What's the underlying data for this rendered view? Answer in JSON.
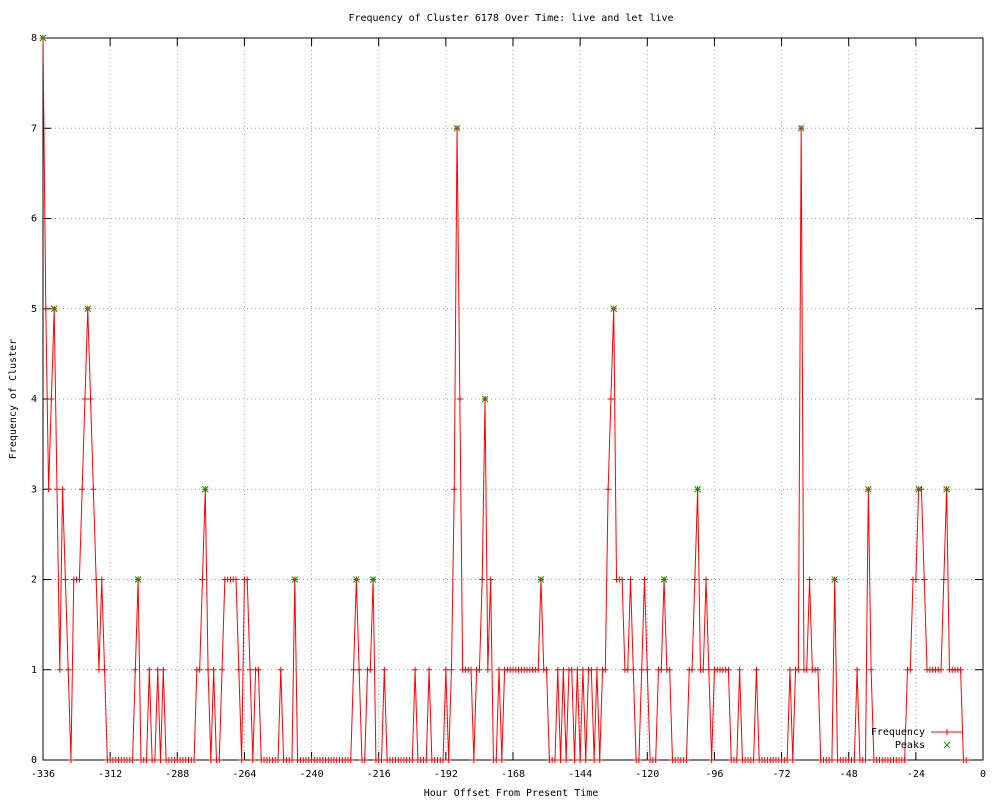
{
  "chart_data": {
    "type": "line",
    "title": "Frequency of Cluster 6178 Over Time: live and let live",
    "x_label": "Hour Offset From Present Time",
    "y_label": "Frequency of Cluster",
    "xlim": [
      -336,
      0
    ],
    "xticks": [
      -336,
      -312,
      -288,
      -264,
      -240,
      -216,
      -192,
      -168,
      -144,
      -120,
      -96,
      -72,
      -48,
      -24,
      0
    ],
    "ylim": [
      0,
      8
    ],
    "yticks": [
      0,
      1,
      2,
      3,
      4,
      5,
      6,
      7,
      8
    ],
    "grid": true,
    "legend_position": "bottom-right",
    "series": [
      {
        "name": "Frequency",
        "color": "#ff0000",
        "marker": "plus",
        "x": [
          -336,
          -335,
          -334,
          -333,
          -332,
          -331,
          -330,
          -329,
          -328,
          -327,
          -326,
          -325,
          -324,
          -323,
          -322,
          -321,
          -320,
          -319,
          -318,
          -317,
          -316,
          -315,
          -314,
          -313,
          -312,
          -311,
          -310,
          -309,
          -308,
          -307,
          -306,
          -305,
          -304,
          -303,
          -302,
          -301,
          -300,
          -299,
          -298,
          -297,
          -296,
          -295,
          -294,
          -293,
          -292,
          -291,
          -290,
          -289,
          -288,
          -287,
          -286,
          -285,
          -284,
          -283,
          -282,
          -281,
          -280,
          -279,
          -278,
          -277,
          -276,
          -275,
          -274,
          -273,
          -272,
          -271,
          -270,
          -269,
          -268,
          -267,
          -266,
          -265,
          -264,
          -263,
          -262,
          -261,
          -260,
          -259,
          -258,
          -257,
          -256,
          -255,
          -254,
          -253,
          -252,
          -251,
          -250,
          -249,
          -248,
          -247,
          -246,
          -245,
          -244,
          -243,
          -242,
          -241,
          -240,
          -239,
          -238,
          -237,
          -236,
          -235,
          -234,
          -233,
          -232,
          -231,
          -230,
          -229,
          -228,
          -227,
          -226,
          -225,
          -224,
          -223,
          -222,
          -221,
          -220,
          -219,
          -218,
          -217,
          -216,
          -215,
          -214,
          -213,
          -212,
          -211,
          -210,
          -209,
          -208,
          -207,
          -206,
          -205,
          -204,
          -203,
          -202,
          -201,
          -200,
          -199,
          -198,
          -197,
          -196,
          -195,
          -194,
          -193,
          -192,
          -191,
          -190,
          -189,
          -188,
          -187,
          -186,
          -185,
          -184,
          -183,
          -182,
          -181,
          -180,
          -179,
          -178,
          -177,
          -176,
          -175,
          -174,
          -173,
          -172,
          -171,
          -170,
          -169,
          -168,
          -167,
          -166,
          -165,
          -164,
          -163,
          -162,
          -161,
          -160,
          -159,
          -158,
          -157,
          -156,
          -155,
          -154,
          -153,
          -152,
          -151,
          -150,
          -149,
          -148,
          -147,
          -146,
          -145,
          -144,
          -143,
          -142,
          -141,
          -140,
          -139,
          -138,
          -137,
          -136,
          -135,
          -134,
          -133,
          -132,
          -131,
          -130,
          -129,
          -128,
          -127,
          -126,
          -125,
          -124,
          -123,
          -122,
          -121,
          -120,
          -119,
          -118,
          -117,
          -116,
          -115,
          -114,
          -113,
          -112,
          -111,
          -110,
          -109,
          -108,
          -107,
          -106,
          -105,
          -104,
          -103,
          -102,
          -101,
          -100,
          -99,
          -98,
          -97,
          -96,
          -95,
          -94,
          -93,
          -92,
          -91,
          -90,
          -89,
          -88,
          -87,
          -86,
          -85,
          -84,
          -83,
          -82,
          -81,
          -80,
          -79,
          -78,
          -77,
          -76,
          -75,
          -74,
          -73,
          -72,
          -71,
          -70,
          -69,
          -68,
          -67,
          -66,
          -65,
          -64,
          -63,
          -62,
          -61,
          -60,
          -59,
          -58,
          -57,
          -56,
          -55,
          -54,
          -53,
          -52,
          -51,
          -50,
          -49,
          -48,
          -47,
          -46,
          -45,
          -44,
          -43,
          -42,
          -41,
          -40,
          -39,
          -38,
          -37,
          -36,
          -35,
          -34,
          -33,
          -32,
          -31,
          -30,
          -29,
          -28,
          -27,
          -26,
          -25,
          -24,
          -23,
          -22,
          -21,
          -20,
          -19,
          -18,
          -17,
          -16,
          -15,
          -14,
          -13,
          -12,
          -11,
          -10,
          -9,
          -8,
          -7,
          -6
        ],
        "values": [
          8,
          5,
          3,
          4,
          5,
          3,
          1,
          3,
          2,
          1,
          0,
          2,
          2,
          2,
          3,
          4,
          5,
          4,
          3,
          2,
          1,
          2,
          1,
          0,
          0,
          0,
          0,
          0,
          0,
          0,
          0,
          0,
          0,
          1,
          2,
          0,
          0,
          0,
          1,
          0,
          0,
          1,
          0,
          1,
          0,
          0,
          0,
          0,
          0,
          0,
          0,
          0,
          0,
          0,
          0,
          1,
          1,
          2,
          3,
          1,
          0,
          1,
          0,
          0,
          1,
          2,
          2,
          2,
          2,
          2,
          1,
          0,
          2,
          2,
          1,
          0,
          1,
          1,
          0,
          0,
          0,
          0,
          0,
          0,
          0,
          1,
          0,
          0,
          0,
          0,
          2,
          0,
          0,
          0,
          0,
          0,
          0,
          0,
          0,
          0,
          0,
          0,
          0,
          0,
          0,
          0,
          0,
          0,
          0,
          0,
          0,
          1,
          2,
          1,
          0,
          0,
          1,
          1,
          2,
          0,
          0,
          0,
          1,
          0,
          0,
          0,
          0,
          0,
          0,
          0,
          0,
          0,
          0,
          1,
          0,
          0,
          0,
          0,
          1,
          0,
          0,
          0,
          0,
          0,
          1,
          0,
          1,
          3,
          7,
          4,
          1,
          1,
          1,
          1,
          0,
          1,
          1,
          2,
          4,
          1,
          2,
          0,
          0,
          1,
          0,
          1,
          1,
          1,
          1,
          1,
          1,
          1,
          1,
          1,
          1,
          1,
          1,
          1,
          2,
          1,
          1,
          0,
          0,
          0,
          1,
          0,
          1,
          0,
          1,
          1,
          0,
          1,
          0,
          1,
          0,
          1,
          1,
          0,
          1,
          0,
          1,
          1,
          3,
          4,
          5,
          2,
          2,
          2,
          1,
          1,
          2,
          1,
          0,
          0,
          1,
          2,
          1,
          0,
          0,
          0,
          1,
          1,
          2,
          1,
          1,
          0,
          0,
          0,
          0,
          0,
          0,
          1,
          1,
          2,
          3,
          1,
          1,
          2,
          1,
          0,
          1,
          1,
          1,
          1,
          1,
          1,
          0,
          0,
          0,
          1,
          0,
          0,
          0,
          0,
          0,
          1,
          0,
          0,
          0,
          0,
          0,
          0,
          0,
          0,
          0,
          0,
          0,
          1,
          0,
          1,
          1,
          7,
          1,
          1,
          2,
          1,
          1,
          1,
          0,
          0,
          0,
          0,
          0,
          2,
          0,
          0,
          0,
          0,
          0,
          0,
          0,
          1,
          0,
          0,
          0,
          3,
          1,
          0,
          0,
          0,
          0,
          0,
          0,
          0,
          0,
          0,
          0,
          0,
          0,
          1,
          1,
          2,
          2,
          3,
          3,
          2,
          1,
          1,
          1,
          1,
          1,
          1,
          2,
          3,
          1,
          1,
          1,
          1,
          1,
          0,
          0
        ]
      },
      {
        "name": "Peaks",
        "color": "#00a000",
        "marker": "cross",
        "x": [
          -336,
          -332,
          -320,
          -302,
          -278,
          -246,
          -224,
          -218,
          -188,
          -178,
          -158,
          -132,
          -114,
          -102,
          -65,
          -53,
          -41,
          -23,
          -13
        ],
        "values": [
          8,
          5,
          5,
          2,
          3,
          2,
          2,
          2,
          7,
          4,
          2,
          5,
          2,
          3,
          7,
          2,
          3,
          3,
          3
        ]
      }
    ]
  }
}
